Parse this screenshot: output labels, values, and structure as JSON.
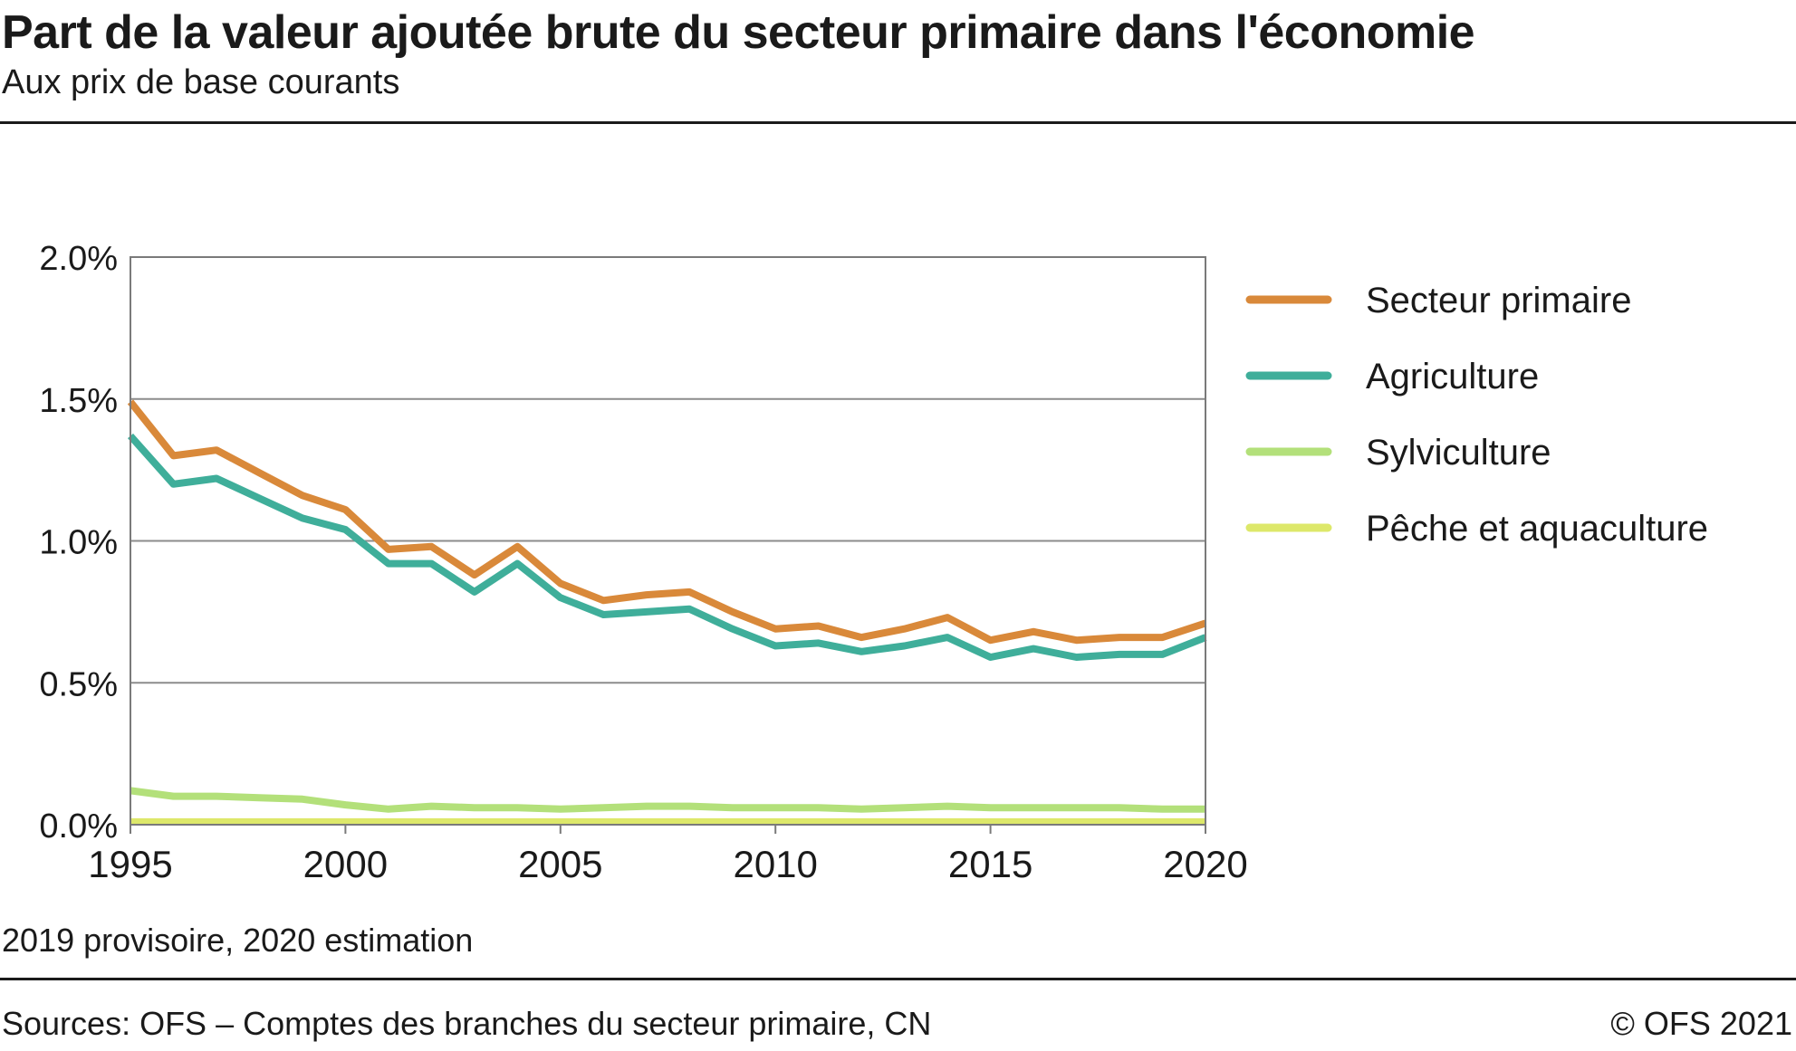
{
  "header": {
    "title": "Part de la valeur ajoutée brute du secteur primaire dans l'économie",
    "subtitle": "Aux prix de base courants"
  },
  "footer": {
    "note": "2019 provisoire, 2020 estimation",
    "source": "Sources: OFS – Comptes des branches du secteur primaire, CN",
    "copyright": "© OFS 2021"
  },
  "chart_data": {
    "type": "line",
    "title": "Part de la valeur ajoutée brute du secteur primaire dans l'économie",
    "subtitle": "Aux prix de base courants",
    "xlabel": "",
    "ylabel": "",
    "xlim": [
      1995,
      2020
    ],
    "ylim": [
      0,
      2.0
    ],
    "y_ticks": [
      0,
      0.5,
      1.0,
      1.5,
      2.0
    ],
    "y_tick_labels": [
      "0.0%",
      "0.5%",
      "1.0%",
      "1.5%",
      "2.0%"
    ],
    "x_ticks": [
      1995,
      2000,
      2005,
      2010,
      2015,
      2020
    ],
    "x_tick_labels": [
      "1995",
      "2000",
      "2005",
      "2010",
      "2015",
      "2020"
    ],
    "grid": "horizontal",
    "legend_position": "right",
    "x": [
      1995,
      1996,
      1997,
      1998,
      1999,
      2000,
      2001,
      2002,
      2003,
      2004,
      2005,
      2006,
      2007,
      2008,
      2009,
      2010,
      2011,
      2012,
      2013,
      2014,
      2015,
      2016,
      2017,
      2018,
      2019,
      2020
    ],
    "series": [
      {
        "name": "Secteur primaire",
        "color": "#d9893a",
        "values": [
          1.49,
          1.3,
          1.32,
          1.24,
          1.16,
          1.11,
          0.97,
          0.98,
          0.88,
          0.98,
          0.85,
          0.79,
          0.81,
          0.82,
          0.75,
          0.69,
          0.7,
          0.66,
          0.69,
          0.73,
          0.65,
          0.68,
          0.65,
          0.66,
          0.66,
          0.71
        ]
      },
      {
        "name": "Agriculture",
        "color": "#3fae9a",
        "values": [
          1.37,
          1.2,
          1.22,
          1.15,
          1.08,
          1.04,
          0.92,
          0.92,
          0.82,
          0.92,
          0.8,
          0.74,
          0.75,
          0.76,
          0.69,
          0.63,
          0.64,
          0.61,
          0.63,
          0.66,
          0.59,
          0.62,
          0.59,
          0.6,
          0.6,
          0.66
        ]
      },
      {
        "name": "Sylviculture",
        "color": "#b3e07a",
        "values": [
          0.12,
          0.1,
          0.1,
          0.095,
          0.09,
          0.07,
          0.055,
          0.065,
          0.06,
          0.06,
          0.055,
          0.06,
          0.065,
          0.065,
          0.06,
          0.06,
          0.06,
          0.055,
          0.06,
          0.065,
          0.06,
          0.06,
          0.06,
          0.06,
          0.055,
          0.055
        ]
      },
      {
        "name": "Pêche et aquaculture",
        "color": "#dde86a",
        "values": [
          0.01,
          0.01,
          0.01,
          0.01,
          0.01,
          0.01,
          0.01,
          0.01,
          0.01,
          0.01,
          0.01,
          0.01,
          0.01,
          0.01,
          0.01,
          0.01,
          0.01,
          0.01,
          0.01,
          0.01,
          0.01,
          0.01,
          0.01,
          0.01,
          0.01,
          0.01
        ]
      }
    ]
  }
}
